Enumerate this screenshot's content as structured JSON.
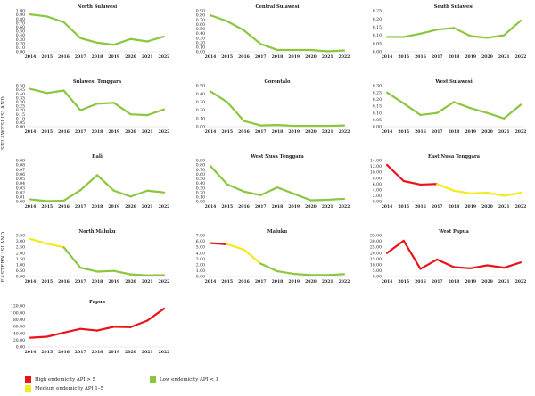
{
  "group_labels": {
    "sulawesi": "SULAWESI ISLAND",
    "eastern": "EASTERN ISLAND"
  },
  "years": [
    "2014",
    "2015",
    "2016",
    "2017",
    "2018",
    "2019",
    "2020",
    "2021",
    "2022"
  ],
  "legend": [
    {
      "key": "high",
      "label": "High endemicity API > 5",
      "color": "#e8141a"
    },
    {
      "key": "low",
      "label": "Low endemicity API < 1",
      "color": "#8cc63f"
    },
    {
      "key": "medium",
      "label": "Medium endemicity API 1–5",
      "color": "#f2ea1c"
    }
  ],
  "colors": {
    "high": "#e8141a",
    "medium": "#f2ea1c",
    "low": "#8cc63f"
  },
  "chart_data": [
    {
      "type": "line",
      "title": "North Sulawesi",
      "x": [
        "2014",
        "2015",
        "2016",
        "2017",
        "2018",
        "2019",
        "2020",
        "2021",
        "2022"
      ],
      "ylim": [
        0,
        1.0
      ],
      "yticks": [
        "0.00",
        "0.10",
        "0.20",
        "0.30",
        "0.40",
        "0.50",
        "0.60",
        "0.70",
        "0.80",
        "0.90",
        "1.00"
      ],
      "values": [
        0.91,
        0.86,
        0.72,
        0.33,
        0.22,
        0.17,
        0.31,
        0.25,
        0.37
      ],
      "levels": [
        "low",
        "low",
        "low",
        "low",
        "low",
        "low",
        "low",
        "low",
        "low"
      ]
    },
    {
      "type": "line",
      "title": "Central Sulawesi",
      "x": [
        "2014",
        "2015",
        "2016",
        "2017",
        "2018",
        "2019",
        "2020",
        "2021",
        "2022"
      ],
      "ylim": [
        0,
        0.9
      ],
      "yticks": [
        "0.00",
        "0.10",
        "0.20",
        "0.30",
        "0.40",
        "0.50",
        "0.60",
        "0.70",
        "0.80",
        "0.90"
      ],
      "values": [
        0.8,
        0.67,
        0.47,
        0.17,
        0.04,
        0.04,
        0.04,
        0.01,
        0.03
      ],
      "levels": [
        "low",
        "low",
        "low",
        "low",
        "low",
        "low",
        "low",
        "low",
        "low"
      ]
    },
    {
      "type": "line",
      "title": "South Sulawesi",
      "x": [
        "2014",
        "2015",
        "2016",
        "2017",
        "2018",
        "2019",
        "2020",
        "2021",
        "2022"
      ],
      "ylim": [
        0,
        0.25
      ],
      "yticks": [
        "0.00",
        "0.05",
        "0.10",
        "0.15",
        "0.20",
        "0.25"
      ],
      "values": [
        0.09,
        0.09,
        0.11,
        0.135,
        0.145,
        0.095,
        0.085,
        0.1,
        0.19
      ],
      "levels": [
        "low",
        "low",
        "low",
        "low",
        "low",
        "low",
        "low",
        "low",
        "low"
      ]
    },
    {
      "type": "line",
      "title": "Sulawesi Tenggara",
      "x": [
        "2014",
        "2015",
        "2016",
        "2017",
        "2018",
        "2019",
        "2020",
        "2021",
        "2022"
      ],
      "ylim": [
        0,
        0.5
      ],
      "yticks": [
        "0.00",
        "0.05",
        "0.10",
        "0.15",
        "0.20",
        "0.25",
        "0.30",
        "0.35",
        "0.40",
        "0.45",
        "0.50"
      ],
      "values": [
        0.46,
        0.41,
        0.44,
        0.2,
        0.28,
        0.29,
        0.15,
        0.14,
        0.21
      ],
      "levels": [
        "low",
        "low",
        "low",
        "low",
        "low",
        "low",
        "low",
        "low",
        "low"
      ]
    },
    {
      "type": "line",
      "title": "Gorontalo",
      "x": [
        "2014",
        "2015",
        "2016",
        "2017",
        "2018",
        "2019",
        "2020",
        "2021",
        "2022"
      ],
      "ylim": [
        0,
        0.5
      ],
      "yticks": [
        "0.00",
        "0.10",
        "0.20",
        "0.30",
        "0.40",
        "0.50"
      ],
      "values": [
        0.43,
        0.3,
        0.07,
        0.015,
        0.02,
        0.01,
        0.01,
        0.01,
        0.015
      ],
      "levels": [
        "low",
        "low",
        "low",
        "low",
        "low",
        "low",
        "low",
        "low",
        "low"
      ]
    },
    {
      "type": "line",
      "title": "West Sulawesi",
      "x": [
        "2014",
        "2015",
        "2016",
        "2017",
        "2018",
        "2019",
        "2020",
        "2021",
        "2022"
      ],
      "ylim": [
        0,
        0.3
      ],
      "yticks": [
        "0.00",
        "0.05",
        "0.10",
        "0.15",
        "0.20",
        "0.25",
        "0.30"
      ],
      "values": [
        0.25,
        0.17,
        0.085,
        0.1,
        0.18,
        0.135,
        0.1,
        0.06,
        0.16
      ],
      "levels": [
        "low",
        "low",
        "low",
        "low",
        "low",
        "low",
        "low",
        "low",
        "low"
      ]
    },
    {
      "type": "line",
      "title": "Bali",
      "x": [
        "2014",
        "2015",
        "2016",
        "2017",
        "2018",
        "2019",
        "2020",
        "2021",
        "2022"
      ],
      "ylim": [
        0,
        0.09
      ],
      "yticks": [
        "0.00",
        "0.01",
        "0.02",
        "0.03",
        "0.04",
        "0.05",
        "0.06",
        "0.07",
        "0.08",
        "0.09"
      ],
      "values": [
        0.005,
        0.001,
        0.002,
        0.025,
        0.058,
        0.024,
        0.011,
        0.024,
        0.02
      ],
      "levels": [
        "low",
        "low",
        "low",
        "low",
        "low",
        "low",
        "low",
        "low",
        "low"
      ]
    },
    {
      "type": "line",
      "title": "West Nusa Tenggara",
      "x": [
        "2014",
        "2015",
        "2016",
        "2017",
        "2018",
        "2019",
        "2020",
        "2021",
        "2022"
      ],
      "ylim": [
        0,
        0.9
      ],
      "yticks": [
        "0.00",
        "0.10",
        "0.20",
        "0.30",
        "0.40",
        "0.50",
        "0.60",
        "0.70",
        "0.80",
        "0.90"
      ],
      "values": [
        0.78,
        0.38,
        0.22,
        0.14,
        0.31,
        0.17,
        0.03,
        0.04,
        0.06
      ],
      "levels": [
        "low",
        "low",
        "low",
        "low",
        "low",
        "low",
        "low",
        "low",
        "low"
      ]
    },
    {
      "type": "line",
      "title": "East Nusa Tenggara",
      "x": [
        "2014",
        "2015",
        "2016",
        "2017",
        "2018",
        "2019",
        "2020",
        "2021",
        "2022"
      ],
      "ylim": [
        0,
        14
      ],
      "yticks": [
        "0.00",
        "2.00",
        "4.00",
        "6.00",
        "8.00",
        "10.00",
        "12.00",
        "14.00"
      ],
      "values": [
        12.5,
        7.0,
        5.8,
        6.0,
        3.7,
        2.8,
        3.0,
        2.0,
        3.0
      ],
      "levels": [
        "high",
        "high",
        "high",
        "high",
        "medium",
        "medium",
        "medium",
        "medium",
        "medium"
      ]
    },
    {
      "type": "line",
      "title": "North Maluku",
      "x": [
        "2014",
        "2015",
        "2016",
        "2017",
        "2018",
        "2019",
        "2020",
        "2021",
        "2022"
      ],
      "ylim": [
        0,
        3.5
      ],
      "yticks": [
        "0.00",
        "0.50",
        "1.00",
        "1.50",
        "2.00",
        "2.50",
        "3.00",
        "3.50"
      ],
      "values": [
        3.2,
        2.8,
        2.5,
        0.75,
        0.42,
        0.48,
        0.18,
        0.1,
        0.12
      ],
      "levels": [
        "medium",
        "medium",
        "medium",
        "low",
        "low",
        "low",
        "low",
        "low",
        "low"
      ]
    },
    {
      "type": "line",
      "title": "Maluku",
      "x": [
        "2014",
        "2015",
        "2016",
        "2017",
        "2018",
        "2019",
        "2020",
        "2021",
        "2022"
      ],
      "ylim": [
        0,
        7
      ],
      "yticks": [
        "0.00",
        "1.00",
        "2.00",
        "3.00",
        "4.00",
        "5.00",
        "6.00",
        "7.00"
      ],
      "values": [
        5.7,
        5.5,
        4.6,
        2.2,
        0.9,
        0.45,
        0.25,
        0.25,
        0.4
      ],
      "levels": [
        "high",
        "high",
        "medium",
        "medium",
        "low",
        "low",
        "low",
        "low",
        "low"
      ]
    },
    {
      "type": "line",
      "title": "West Papua",
      "x": [
        "2014",
        "2015",
        "2016",
        "2017",
        "2018",
        "2019",
        "2020",
        "2021",
        "2022"
      ],
      "ylim": [
        0,
        35
      ],
      "yticks": [
        "0.00",
        "5.00",
        "10.00",
        "15.00",
        "20.00",
        "25.00",
        "30.00",
        "35.00"
      ],
      "values": [
        20.0,
        30.5,
        6.5,
        14.5,
        8.0,
        7.0,
        9.5,
        7.5,
        12.0
      ],
      "levels": [
        "high",
        "high",
        "high",
        "high",
        "high",
        "high",
        "high",
        "high",
        "high"
      ]
    },
    {
      "type": "line",
      "title": "Papua",
      "x": [
        "2014",
        "2015",
        "2016",
        "2017",
        "2018",
        "2019",
        "2020",
        "2021",
        "2022"
      ],
      "ylim": [
        0,
        120
      ],
      "yticks": [
        "0.00",
        "20.00",
        "40.00",
        "60.00",
        "80.00",
        "100.00",
        "120.00"
      ],
      "values": [
        27,
        30,
        42,
        53,
        48,
        59,
        58,
        77,
        112
      ],
      "levels": [
        "high",
        "high",
        "high",
        "high",
        "high",
        "high",
        "high",
        "high",
        "high"
      ]
    }
  ]
}
